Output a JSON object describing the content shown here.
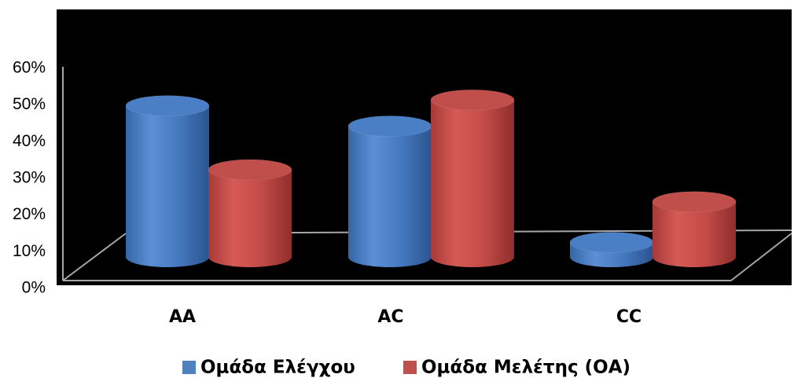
{
  "chart_data": {
    "type": "bar",
    "variant": "3d-cylinder",
    "categories": [
      "AA",
      "AC",
      "CC"
    ],
    "series": [
      {
        "name": "Ομάδα Ελέγχου",
        "values": [
          0.52,
          0.45,
          0.05
        ],
        "color": "#4f81bd"
      },
      {
        "name": "Ομάδα Μελέτης (ΟΑ)",
        "values": [
          0.3,
          0.54,
          0.19
        ],
        "color": "#c0504d"
      }
    ],
    "y_ticks": [
      "0%",
      "10%",
      "20%",
      "30%",
      "40%",
      "50%",
      "60%"
    ],
    "ylim": [
      0,
      0.6
    ],
    "plot_background": "#000000",
    "legend_position": "bottom",
    "grid": false,
    "title": "",
    "xlabel": "",
    "ylabel": ""
  }
}
